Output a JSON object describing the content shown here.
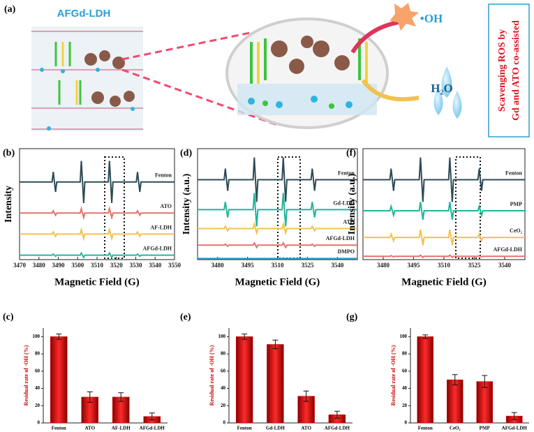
{
  "schematic": {
    "panel_label": "(a)",
    "material": "AFGd-LDH",
    "radical": "•OH",
    "product": "H₂O",
    "caption_line1": "Scavenging ROS by",
    "caption_line2": "Gd and ATO co-assisted"
  },
  "chart_data": [
    {
      "type": "line",
      "panel_label": "(b)",
      "ylabel": "Intensity",
      "xlabel": "Magnetic Field (G)",
      "xlim": [
        3470,
        3550
      ],
      "xticks": [
        3470,
        3480,
        3490,
        3500,
        3510,
        3520,
        3530,
        3540,
        3550
      ],
      "ylim": [
        0,
        100
      ],
      "x": [
        3470,
        3486.8,
        3487.4,
        3488.6,
        3489.2,
        3501.3,
        3501.9,
        3503.1,
        3503.7,
        3515.8,
        3516.4,
        3517.6,
        3518.2,
        3530.3,
        3530.9,
        3532.1,
        3532.7,
        3550
      ],
      "series": [
        {
          "name": "Fenton",
          "color": "#2e4a57",
          "values": [
            70,
            70,
            79,
            61,
            70,
            70,
            89,
            51,
            70,
            70,
            89,
            51,
            70,
            70,
            79,
            61,
            70,
            70
          ]
        },
        {
          "name": "ATO",
          "color": "#e8706a",
          "values": [
            42,
            42,
            44,
            40,
            42,
            42,
            46,
            38,
            42,
            42,
            46,
            38,
            42,
            42,
            44,
            40,
            42,
            42
          ]
        },
        {
          "name": "AF-LDH",
          "color": "#f2c14e",
          "values": [
            23,
            23,
            25,
            21,
            23,
            23,
            27,
            19,
            23,
            23,
            27,
            19,
            23,
            23,
            25,
            21,
            23,
            23
          ]
        },
        {
          "name": "AFGd-LDH",
          "color": "#2bb5a0",
          "values": [
            4,
            4,
            5,
            3,
            4,
            4,
            6,
            2,
            4,
            4,
            6,
            2,
            4,
            4,
            5,
            3,
            4,
            4
          ]
        }
      ]
    },
    {
      "type": "line",
      "panel_label": "(d)",
      "ylabel": "Intensity (a.u.)",
      "xlabel": "Magnetic Field (G)",
      "xlim": [
        3470,
        3550
      ],
      "xticks": [
        3480,
        3495,
        3510,
        3525,
        3540
      ],
      "ylim": [
        0,
        100
      ],
      "x": [
        3470,
        3483.3,
        3483.9,
        3485.1,
        3485.7,
        3497.8,
        3498.4,
        3499.6,
        3500.2,
        3512.3,
        3512.9,
        3514.1,
        3514.7,
        3526.8,
        3527.4,
        3528.6,
        3529.2,
        3550
      ],
      "series": [
        {
          "name": "Fenton",
          "color": "#2e4a57",
          "values": [
            72,
            72,
            82,
            62,
            72,
            72,
            92,
            52,
            72,
            72,
            92,
            52,
            72,
            72,
            82,
            62,
            72,
            72
          ]
        },
        {
          "name": "Gd-LDH",
          "color": "#1fb59a",
          "values": [
            45,
            45,
            52,
            38,
            45,
            45,
            60,
            30,
            45,
            45,
            60,
            30,
            45,
            45,
            52,
            38,
            45,
            45
          ]
        },
        {
          "name": "ATO",
          "color": "#f2c14e",
          "values": [
            28,
            28,
            30,
            26,
            28,
            28,
            32,
            24,
            28,
            28,
            32,
            24,
            28,
            28,
            30,
            26,
            28,
            28
          ]
        },
        {
          "name": "AFGd-LDH",
          "color": "#e8706a",
          "values": [
            13,
            13,
            14,
            12,
            13,
            13,
            15,
            11,
            13,
            13,
            15,
            11,
            13,
            13,
            14,
            12,
            13,
            13
          ]
        },
        {
          "name": "DMPO",
          "color": "#2a9fd6",
          "values": [
            1,
            1,
            1,
            1,
            1,
            1,
            1,
            1,
            1,
            1,
            1,
            1,
            1,
            1,
            1,
            1,
            1,
            1
          ]
        }
      ]
    },
    {
      "type": "line",
      "panel_label": "(f)",
      "ylabel": "Intensity (a.u.)",
      "xlabel": "Magnetic Field (G)",
      "xlim": [
        3470,
        3550
      ],
      "xticks": [
        3480,
        3495,
        3510,
        3525,
        3540
      ],
      "ylim": [
        0,
        100
      ],
      "x": [
        3470,
        3483.3,
        3483.9,
        3485.1,
        3485.7,
        3497.8,
        3498.4,
        3499.6,
        3500.2,
        3512.3,
        3512.9,
        3514.1,
        3514.7,
        3526.8,
        3527.4,
        3528.6,
        3529.2,
        3550
      ],
      "series": [
        {
          "name": "Fenton",
          "color": "#2e4a57",
          "values": [
            72,
            72,
            82,
            62,
            72,
            72,
            92,
            52,
            72,
            72,
            92,
            52,
            72,
            72,
            82,
            62,
            72,
            72
          ]
        },
        {
          "name": "PMP",
          "color": "#1fb59a",
          "values": [
            44,
            44,
            48,
            40,
            44,
            44,
            52,
            36,
            44,
            44,
            52,
            36,
            44,
            44,
            48,
            40,
            44,
            44
          ]
        },
        {
          "name": "CeO₂",
          "color": "#f2c14e",
          "values": [
            20,
            20,
            23,
            17,
            20,
            20,
            27,
            13,
            20,
            20,
            27,
            13,
            20,
            20,
            23,
            17,
            20,
            20
          ]
        },
        {
          "name": "AFGd-LDH",
          "color": "#e8706a",
          "values": [
            3,
            3,
            3.5,
            2.5,
            3,
            3,
            4,
            2,
            3,
            3,
            4,
            2,
            3,
            3,
            3.5,
            2.5,
            3,
            3
          ]
        }
      ]
    },
    {
      "type": "bar",
      "panel_label": "(c)",
      "ylabel": "Residual rate of ·OH (%)",
      "color": "#d40000",
      "categories": [
        "Fenton",
        "ATO",
        "AF-LDH",
        "AFGd-LDH"
      ],
      "values": [
        100,
        30,
        30,
        7.5
      ],
      "errors": [
        3,
        6,
        5,
        4
      ],
      "ylim": [
        0,
        110
      ],
      "yticks": [
        0,
        20,
        40,
        60,
        80,
        100
      ]
    },
    {
      "type": "bar",
      "panel_label": "(e)",
      "ylabel": "Residual rate of ·OH (%)",
      "color": "#d40000",
      "categories": [
        "Fenton",
        "Gd-LDH",
        "ATO",
        "AFGd-LDH"
      ],
      "values": [
        100,
        91,
        31,
        9.5
      ],
      "errors": [
        3,
        5,
        6,
        4
      ],
      "ylim": [
        0,
        110
      ],
      "yticks": [
        0,
        20,
        40,
        60,
        80,
        100
      ]
    },
    {
      "type": "bar",
      "panel_label": "(g)",
      "ylabel": "Residual rate of ·OH (%)",
      "color": "#d40000",
      "categories": [
        "Fenton",
        "CeO₂",
        "PMP",
        "AFGd-LDH"
      ],
      "values": [
        100,
        50,
        48,
        8
      ],
      "errors": [
        2,
        6,
        7,
        4
      ],
      "ylim": [
        0,
        110
      ],
      "yticks": [
        0,
        20,
        40,
        60,
        80,
        100
      ]
    }
  ]
}
